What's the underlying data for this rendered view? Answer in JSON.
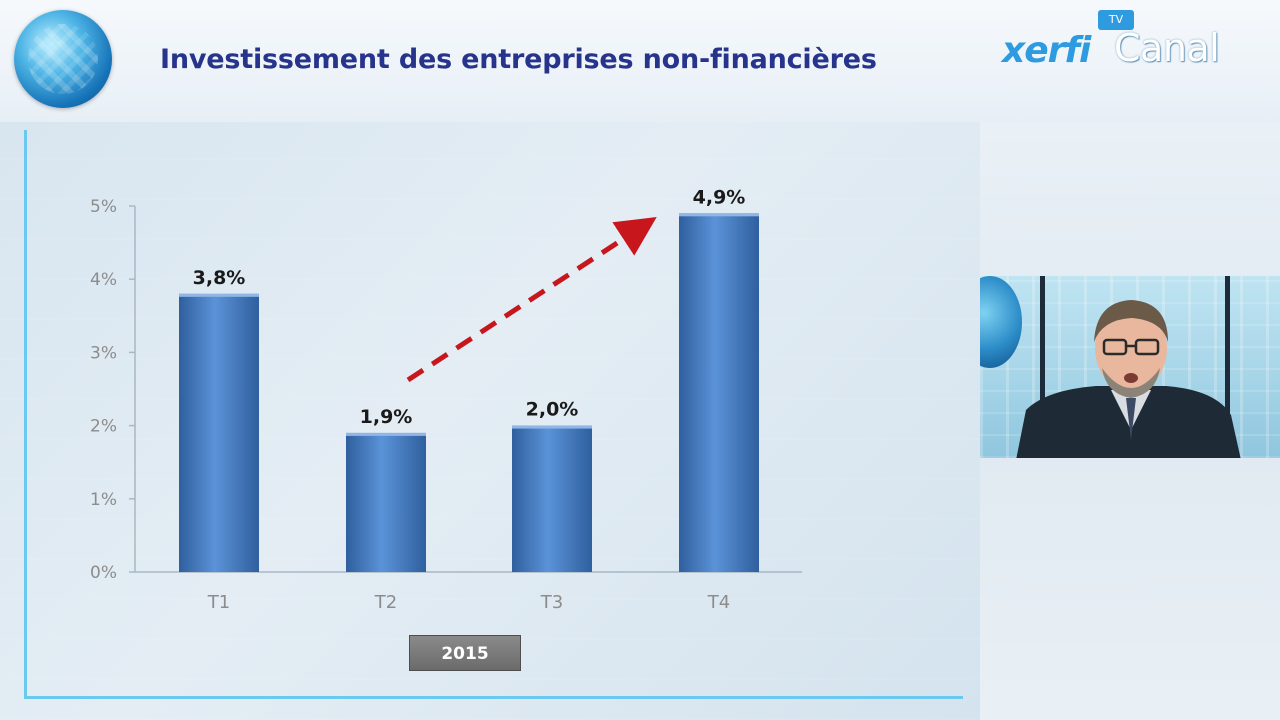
{
  "header": {
    "title": "Investissement des entreprises non-financières",
    "logo": {
      "brand_part1": "xerfi",
      "brand_part2": "Canal",
      "badge": "TV"
    }
  },
  "chart_data": {
    "type": "bar",
    "title": "Investissement des entreprises non-financières",
    "categories": [
      "T1",
      "T2",
      "T3",
      "T4"
    ],
    "values": [
      3.8,
      1.9,
      2.0,
      4.9
    ],
    "value_labels": [
      "3,8%",
      "1,9%",
      "2,0%",
      "4,9%"
    ],
    "y_ticks": [
      "0%",
      "1%",
      "2%",
      "3%",
      "4%",
      "5%"
    ],
    "ylim": [
      0,
      5
    ],
    "grid": false,
    "group_label": "2015",
    "annotation": "dashed red arrow rising from T2 toward T4",
    "colors": {
      "bar": "#4a7fc7",
      "bar_dark": "#2f5f9e",
      "arrow": "#c8161d",
      "axis_text": "#8c8c8c"
    }
  },
  "presenter": {
    "icon": "presenter-video"
  },
  "colors": {
    "title": "#27348b",
    "accent": "#6bc8ef"
  }
}
